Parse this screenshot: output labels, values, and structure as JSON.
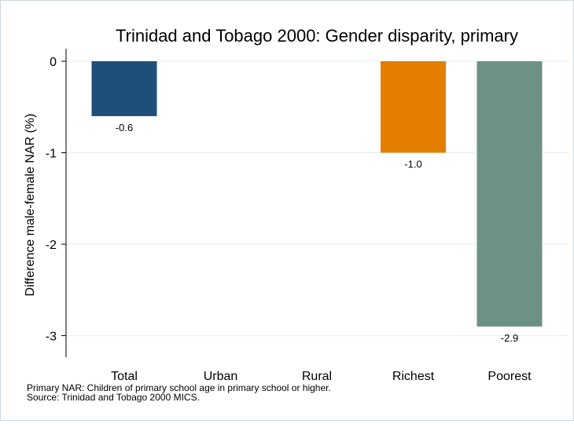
{
  "chart_data": {
    "type": "bar",
    "title": "Trinidad and Tobago 2000: Gender disparity, primary",
    "ylabel": "Difference male-female NAR (%)",
    "xlabel": "",
    "categories": [
      "Total",
      "Urban",
      "Rural",
      "Richest",
      "Poorest"
    ],
    "values": [
      -0.6,
      null,
      null,
      -1.0,
      -2.9
    ],
    "value_labels": [
      "-0.6",
      "",
      "",
      "-1.0",
      "-2.9"
    ],
    "bar_colors": [
      "#1f4e79",
      null,
      null,
      "#e37e00",
      "#6e9185"
    ],
    "ylim": [
      -3.25,
      0.05
    ],
    "yticks": [
      0,
      -1,
      -2,
      -3
    ],
    "ytick_labels": [
      "0",
      "-1",
      "-2",
      "-3"
    ],
    "grid": true,
    "legend": "none"
  },
  "notes": {
    "line1": "Primary NAR: Children of primary school age in primary school or higher.",
    "line2": "Source: Trinidad and Tobago 2000 MICS."
  }
}
